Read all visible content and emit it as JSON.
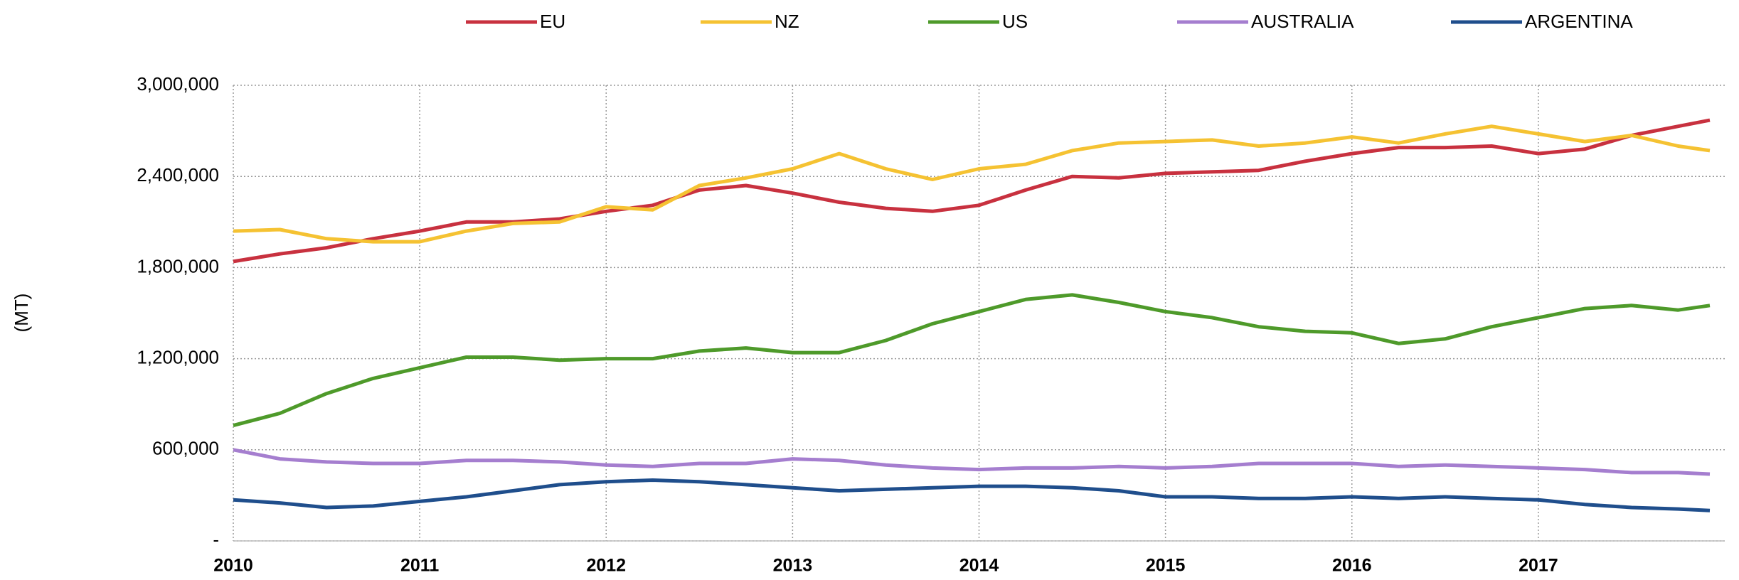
{
  "chart_data": {
    "type": "line",
    "ylabel": "(MT)",
    "x": [
      2010,
      2010.25,
      2010.5,
      2010.75,
      2011,
      2011.25,
      2011.5,
      2011.75,
      2012,
      2012.25,
      2012.5,
      2012.75,
      2013,
      2013.25,
      2013.5,
      2013.75,
      2014,
      2014.25,
      2014.5,
      2014.75,
      2015,
      2015.25,
      2015.5,
      2015.75,
      2016,
      2016.25,
      2016.5,
      2016.75,
      2017,
      2017.25,
      2017.5,
      2017.75,
      2017.92
    ],
    "xlim": [
      2010,
      2018
    ],
    "xticks": [
      2010,
      2011,
      2012,
      2013,
      2014,
      2015,
      2016,
      2017
    ],
    "ylim": [
      0,
      3000000
    ],
    "yticks": [
      {
        "value": 0,
        "label": "-"
      },
      {
        "value": 600000,
        "label": "600,000"
      },
      {
        "value": 1200000,
        "label": "1,200,000"
      },
      {
        "value": 1800000,
        "label": "1,800,000"
      },
      {
        "value": 2400000,
        "label": "2,400,000"
      },
      {
        "value": 3000000,
        "label": "3,000,000"
      }
    ],
    "grid": true,
    "legend": "top",
    "series": [
      {
        "name": "EU",
        "color": "#c8313f",
        "values": [
          1840000,
          1890000,
          1930000,
          1990000,
          2040000,
          2100000,
          2100000,
          2120000,
          2170000,
          2210000,
          2310000,
          2340000,
          2290000,
          2230000,
          2190000,
          2170000,
          2210000,
          2310000,
          2400000,
          2390000,
          2420000,
          2430000,
          2440000,
          2500000,
          2550000,
          2590000,
          2590000,
          2600000,
          2550000,
          2580000,
          2670000,
          2730000,
          2770000
        ]
      },
      {
        "name": "NZ",
        "color": "#f5c232",
        "values": [
          2040000,
          2050000,
          1990000,
          1970000,
          1970000,
          2040000,
          2090000,
          2100000,
          2200000,
          2180000,
          2340000,
          2390000,
          2450000,
          2550000,
          2450000,
          2380000,
          2450000,
          2480000,
          2570000,
          2620000,
          2630000,
          2640000,
          2600000,
          2620000,
          2660000,
          2620000,
          2680000,
          2730000,
          2680000,
          2630000,
          2670000,
          2600000,
          2570000
        ]
      },
      {
        "name": "US",
        "color": "#4e9a2a",
        "values": [
          760000,
          840000,
          970000,
          1070000,
          1140000,
          1210000,
          1210000,
          1190000,
          1200000,
          1200000,
          1250000,
          1270000,
          1240000,
          1240000,
          1320000,
          1430000,
          1510000,
          1590000,
          1620000,
          1570000,
          1510000,
          1470000,
          1410000,
          1380000,
          1370000,
          1300000,
          1330000,
          1410000,
          1470000,
          1530000,
          1550000,
          1520000,
          1550000
        ]
      },
      {
        "name": "AUSTRALIA",
        "color": "#a57ecf",
        "values": [
          600000,
          540000,
          520000,
          510000,
          510000,
          530000,
          530000,
          520000,
          500000,
          490000,
          510000,
          510000,
          540000,
          530000,
          500000,
          480000,
          470000,
          480000,
          480000,
          490000,
          480000,
          490000,
          510000,
          510000,
          510000,
          490000,
          500000,
          490000,
          480000,
          470000,
          450000,
          450000,
          440000
        ]
      },
      {
        "name": "ARGENTINA",
        "color": "#1f4e8c",
        "values": [
          270000,
          250000,
          220000,
          230000,
          260000,
          290000,
          330000,
          370000,
          390000,
          400000,
          390000,
          370000,
          350000,
          330000,
          340000,
          350000,
          360000,
          360000,
          350000,
          330000,
          290000,
          290000,
          280000,
          280000,
          290000,
          280000,
          290000,
          280000,
          270000,
          240000,
          220000,
          210000,
          200000
        ]
      }
    ]
  }
}
